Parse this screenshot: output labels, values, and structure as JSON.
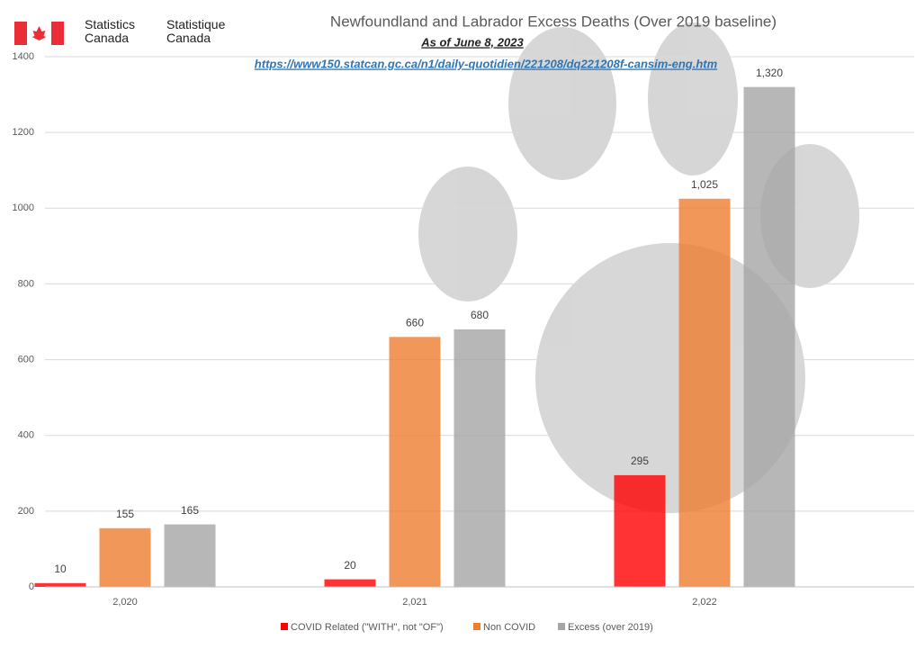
{
  "brand": {
    "en": "Statistics Canada",
    "fr": "Statistique Canada"
  },
  "chart_data": {
    "type": "bar",
    "title": "Newfoundland and Labrador Excess Deaths (Over 2019 baseline)",
    "subtitle": "As of June 8, 2023",
    "source_url": "https://www150.statcan.gc.ca/n1/daily-quotidien/221208/dq221208f-cansim-eng.htm",
    "categories": [
      "2,020",
      "2,021",
      "2,022"
    ],
    "series": [
      {
        "name": "COVID Related (\"WITH\", not \"OF\")",
        "color": "#ff0000",
        "values": [
          10,
          20,
          295
        ],
        "value_labels": [
          "10",
          "20",
          "295"
        ]
      },
      {
        "name": "Non COVID",
        "color": "#ed7d31",
        "values": [
          155,
          660,
          1025
        ],
        "value_labels": [
          "155",
          "660",
          "1,025"
        ]
      },
      {
        "name": "Excess (over 2019)",
        "color": "#a5a5a5",
        "values": [
          165,
          680,
          1320
        ],
        "value_labels": [
          "165",
          "680",
          "1,320"
        ]
      }
    ],
    "ylim": [
      0,
      1400
    ],
    "yticks": [
      0,
      200,
      400,
      600,
      800,
      1000,
      1200,
      1400
    ],
    "grid": true,
    "legend": "bottom"
  }
}
